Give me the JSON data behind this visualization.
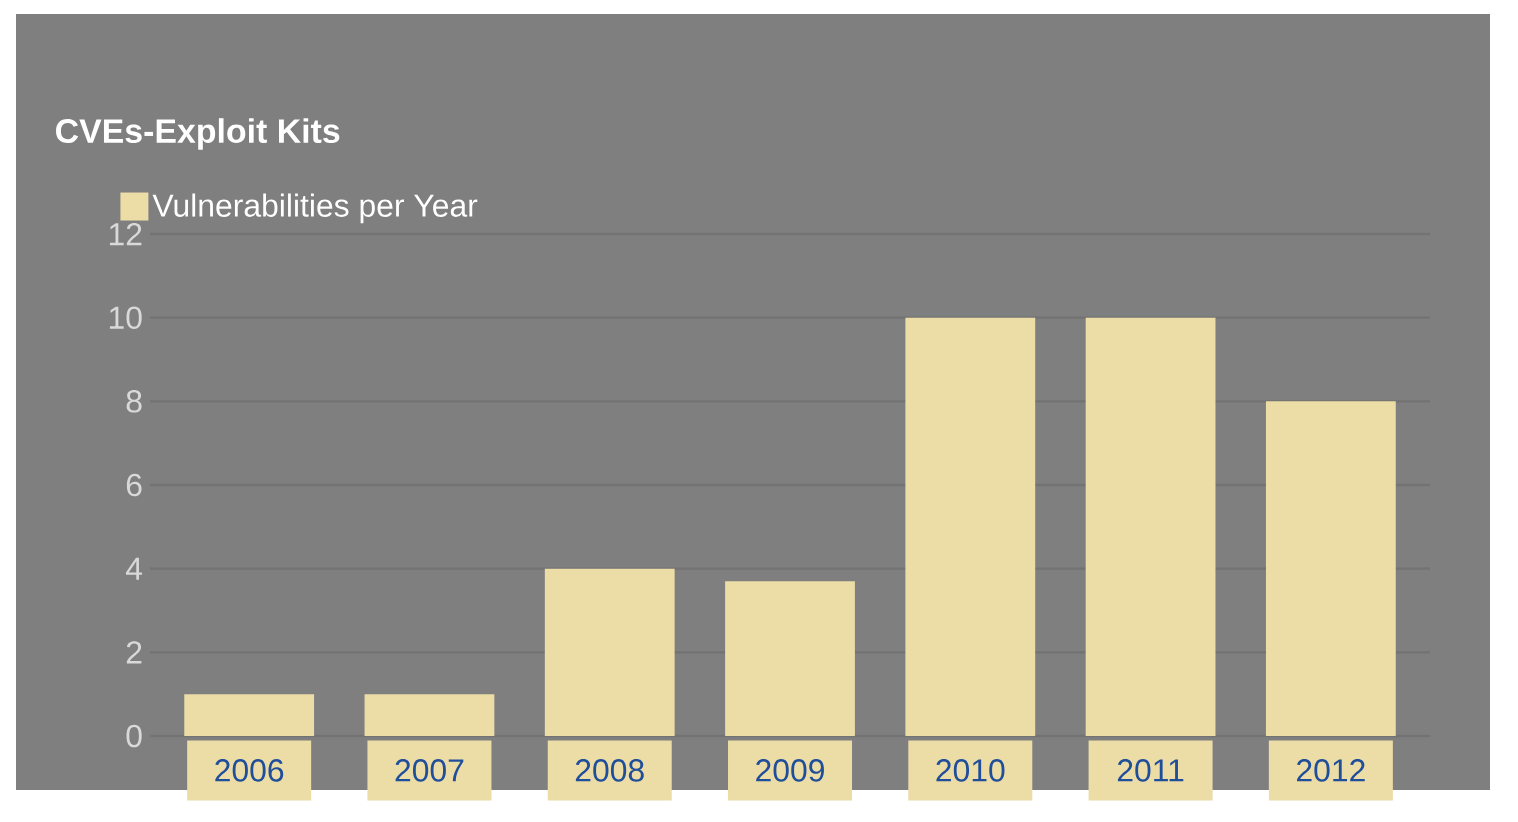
{
  "chart_data": {
    "type": "bar",
    "title": "CVEs-Exploit Kits",
    "categories": [
      "2006",
      "2007",
      "2008",
      "2009",
      "2010",
      "2011",
      "2012"
    ],
    "series": [
      {
        "name": "Vulnerabilities per Year",
        "color": "#ecdca6",
        "values": [
          1,
          1,
          4,
          3.7,
          10,
          10,
          8
        ]
      }
    ],
    "ylim": [
      0,
      12
    ],
    "yticks": [
      0,
      2,
      4,
      6,
      8,
      10,
      12
    ],
    "grid": "y",
    "legend": "top left"
  }
}
